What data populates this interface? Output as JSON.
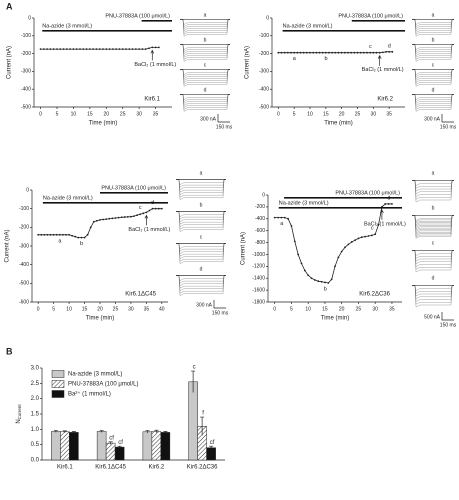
{
  "panels": [
    "A",
    "B"
  ],
  "chart_data": [
    {
      "type": "line",
      "label": "Kir6.1",
      "x_label": "Time (min)",
      "y_label": "Current (nA)",
      "annotations": [
        "PNU-37883A (100 μmol/L)",
        "Na-azide (3 mmol/L)",
        "BaCl₂ (1 mmol/L)"
      ],
      "x": [
        0,
        1,
        2,
        3,
        4,
        5,
        6,
        7,
        8,
        9,
        10,
        11,
        12,
        13,
        14,
        15,
        16,
        17,
        18,
        19,
        20,
        21,
        22,
        23,
        24,
        25,
        26,
        27,
        28,
        29,
        30,
        31,
        32,
        33,
        34,
        35,
        36
      ],
      "y": [
        -175,
        -175,
        -175,
        -175,
        -175,
        -175,
        -175,
        -175,
        -175,
        -175,
        -175,
        -175,
        -175,
        -175,
        -175,
        -175,
        -175,
        -175,
        -175,
        -175,
        -175,
        -175,
        -175,
        -175,
        -175,
        -175,
        -175,
        -175,
        -175,
        -175,
        -175,
        -175,
        -175,
        -170,
        -165,
        -165,
        -165
      ],
      "xlim": [
        -2,
        40
      ],
      "xticks": [
        0,
        5,
        10,
        15,
        20,
        25,
        30,
        35
      ],
      "ylim": [
        -500,
        0
      ],
      "yticks": [
        0,
        -100,
        -200,
        -300,
        -400,
        -500
      ],
      "color": "#222222",
      "trace_labels": [
        "a",
        "b",
        "c",
        "d"
      ],
      "scale_bar": [
        "300 nA",
        "150 ms"
      ]
    },
    {
      "type": "line",
      "label": "Kir6.2",
      "x_label": "Time (min)",
      "y_label": "Current (nA)",
      "annotations": [
        "PNU-37883A (100 μmol/L)",
        "Na-azide (3 mmol/L)",
        "BaCl₂ (1 mmol/L)"
      ],
      "x": [
        0,
        1,
        2,
        3,
        4,
        5,
        6,
        7,
        8,
        9,
        10,
        11,
        12,
        13,
        14,
        15,
        16,
        17,
        18,
        19,
        20,
        21,
        22,
        23,
        24,
        25,
        26,
        27,
        28,
        29,
        30,
        31,
        32,
        33,
        34,
        35,
        36
      ],
      "y": [
        -195,
        -195,
        -195,
        -195,
        -195,
        -195,
        -195,
        -195,
        -195,
        -195,
        -195,
        -195,
        -195,
        -195,
        -195,
        -195,
        -195,
        -195,
        -195,
        -195,
        -195,
        -195,
        -195,
        -195,
        -195,
        -195,
        -195,
        -195,
        -195,
        -195,
        -195,
        -195,
        -195,
        -193,
        -190,
        -190,
        -190
      ],
      "point_labels": [
        null,
        null,
        null,
        null,
        null,
        null,
        "a",
        null,
        null,
        null,
        null,
        null,
        null,
        null,
        null,
        null,
        "b",
        null,
        null,
        null,
        null,
        null,
        null,
        null,
        null,
        null,
        null,
        null,
        null,
        null,
        "c",
        null,
        null,
        null,
        null,
        null,
        "d"
      ],
      "xlim": [
        -2,
        40
      ],
      "xticks": [
        0,
        5,
        10,
        15,
        20,
        25,
        30,
        35
      ],
      "ylim": [
        -500,
        0
      ],
      "yticks": [
        0,
        -100,
        -200,
        -300,
        -400,
        -500
      ],
      "color": "#222222",
      "trace_labels": [
        "a",
        "b",
        "c",
        "d"
      ],
      "scale_bar": [
        "300 nA",
        "150 ms"
      ]
    },
    {
      "type": "line",
      "label": "Kir6.1ΔC45",
      "x_label": "Time (min)",
      "y_label": "Current (nA)",
      "annotations": [
        "PNU-37883A (100 μmol/L)",
        "Na-azide (3 mmol/L)",
        "BaCl₂ (1 mmol/L)"
      ],
      "x": [
        0,
        1,
        2,
        3,
        4,
        5,
        6,
        7,
        8,
        9,
        10,
        11,
        12,
        13,
        14,
        15,
        16,
        17,
        18,
        19,
        20,
        21,
        22,
        23,
        24,
        25,
        26,
        27,
        28,
        29,
        30,
        31,
        32,
        33,
        34,
        35,
        36,
        37,
        38,
        39,
        40
      ],
      "y": [
        -240,
        -240,
        -240,
        -240,
        -240,
        -240,
        -240,
        -240,
        -240,
        -240,
        -240,
        -245,
        -250,
        -255,
        -255,
        -255,
        -240,
        -200,
        -170,
        -165,
        -160,
        -158,
        -156,
        -154,
        -152,
        -150,
        -148,
        -146,
        -145,
        -144,
        -143,
        -140,
        -135,
        -130,
        -125,
        -120,
        -110,
        -100,
        -100,
        -100,
        -100
      ],
      "point_labels": [
        null,
        null,
        null,
        null,
        null,
        null,
        null,
        null,
        "a",
        null,
        null,
        null,
        null,
        null,
        null,
        "b",
        null,
        null,
        null,
        null,
        null,
        null,
        null,
        null,
        null,
        null,
        null,
        null,
        null,
        null,
        null,
        null,
        null,
        null,
        "c",
        null,
        null,
        null,
        "d",
        null,
        null
      ],
      "xlim": [
        -2,
        42
      ],
      "xticks": [
        0,
        5,
        10,
        15,
        20,
        25,
        30,
        35,
        40
      ],
      "ylim": [
        -600,
        0
      ],
      "yticks": [
        0,
        -100,
        -200,
        -300,
        -400,
        -500,
        -600
      ],
      "color": "#222222",
      "trace_labels": [
        "a",
        "b",
        "c",
        "d"
      ],
      "scale_bar": [
        "300 nA",
        "150 ms"
      ]
    },
    {
      "type": "line",
      "label": "Kir6.2ΔC36",
      "x_label": "Time (min)",
      "y_label": "Current (nA)",
      "annotations": [
        "PNU-37883A (100 μmol/L)",
        "Na-azide (3 mmol/L)",
        "BaCl₂ (1 mmol/L)"
      ],
      "x": [
        0,
        1,
        2,
        3,
        4,
        5,
        6,
        7,
        8,
        9,
        10,
        11,
        12,
        13,
        14,
        15,
        16,
        17,
        18,
        19,
        20,
        21,
        22,
        23,
        24,
        25,
        26,
        27,
        28,
        29,
        30,
        31,
        32,
        33,
        34,
        35
      ],
      "y": [
        -380,
        -380,
        -380,
        -380,
        -400,
        -520,
        -780,
        -1000,
        -1150,
        -1270,
        -1350,
        -1400,
        -1430,
        -1450,
        -1460,
        -1470,
        -1480,
        -1420,
        -1200,
        -1050,
        -950,
        -880,
        -830,
        -790,
        -760,
        -730,
        -710,
        -700,
        -690,
        -680,
        -660,
        -500,
        -200,
        -150,
        -150,
        -150
      ],
      "point_labels": [
        null,
        null,
        null,
        "a",
        null,
        null,
        null,
        null,
        null,
        null,
        null,
        null,
        null,
        null,
        null,
        null,
        "b",
        null,
        null,
        null,
        null,
        null,
        null,
        null,
        null,
        null,
        null,
        null,
        null,
        null,
        "c",
        null,
        null,
        null,
        null,
        "d"
      ],
      "xlim": [
        -2,
        38
      ],
      "xticks": [
        0,
        5,
        10,
        15,
        20,
        25,
        30,
        35
      ],
      "ylim": [
        -1800,
        0
      ],
      "yticks": [
        0,
        -200,
        -400,
        -600,
        -800,
        -1000,
        -1200,
        -1400,
        -1600,
        -1800
      ],
      "color": "#222222",
      "trace_labels": [
        "a",
        "b",
        "c",
        "d"
      ],
      "scale_bar": [
        "500 nA",
        "150 ms"
      ]
    },
    {
      "type": "bar",
      "y_label": "N",
      "y_label_sub": "Current",
      "categories": [
        "Kir6.1",
        "Kir6.1ΔC45",
        "Kir6.2",
        "Kir6.2ΔC36"
      ],
      "series": [
        {
          "name": "Na-azide (3 mmol/L)",
          "color": "#c8c8c8",
          "values": [
            0.93,
            0.93,
            0.92,
            2.55
          ],
          "errors": [
            0.03,
            0.03,
            0.04,
            0.35
          ],
          "labels": [
            null,
            null,
            null,
            "c"
          ]
        },
        {
          "name": "PNU-37883A (100 μmol/L)",
          "color": "hatch",
          "values": [
            0.92,
            0.55,
            0.93,
            1.1
          ],
          "errors": [
            0.03,
            0.04,
            0.04,
            0.3
          ],
          "labels": [
            null,
            "cf",
            null,
            "f"
          ]
        },
        {
          "name": "Ba²⁺ (1 mmol/L)",
          "color": "#111111",
          "values": [
            0.9,
            0.42,
            0.9,
            0.4
          ],
          "errors": [
            0.03,
            0.03,
            0.03,
            0.05
          ],
          "labels": [
            null,
            "cf",
            null,
            "cf"
          ]
        }
      ],
      "ylim": [
        0,
        3
      ],
      "yticks": [
        {
          "value": 0,
          "label": "0.0"
        },
        0.5,
        {
          "value": 1,
          "label": "1.0"
        },
        1.5,
        {
          "value": 2,
          "label": "2.0"
        },
        2.5,
        {
          "value": 3,
          "label": "3.0"
        }
      ]
    }
  ]
}
